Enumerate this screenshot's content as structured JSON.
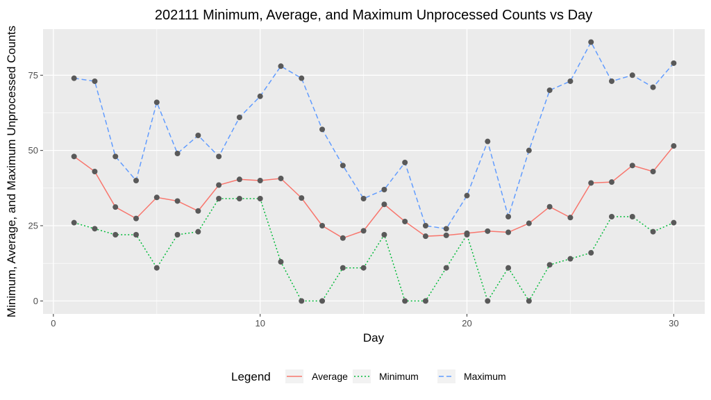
{
  "chart_data": {
    "type": "line",
    "title": "202111 Minimum, Average, and Maximum Unprocessed Counts vs Day",
    "xlabel": "Day",
    "ylabel": "Minimum, Average, and Maximum Unprocessed Counts",
    "xlim": [
      -0.5,
      31.5
    ],
    "ylim": [
      -4.3,
      90.3
    ],
    "x_ticks": [
      0,
      10,
      20,
      30
    ],
    "y_ticks": [
      0,
      25,
      50,
      75
    ],
    "grid": true,
    "legend_position": "bottom",
    "legend_title": "Legend",
    "point_color": "#595959",
    "panel_background": "#ebebeb",
    "x": [
      1,
      2,
      3,
      4,
      5,
      6,
      7,
      8,
      9,
      10,
      11,
      12,
      13,
      14,
      15,
      16,
      17,
      18,
      19,
      20,
      21,
      22,
      23,
      24,
      25,
      26,
      27,
      28,
      29,
      30
    ],
    "series": [
      {
        "name": "Average",
        "color": "#f8766d",
        "dash": "solid",
        "values": [
          48,
          43,
          31.2,
          27.4,
          34.4,
          33.2,
          29.9,
          38.5,
          40.4,
          40,
          40.7,
          34.2,
          25,
          20.9,
          23.3,
          32.1,
          26.4,
          21.5,
          21.8,
          22.5,
          23.2,
          22.8,
          25.8,
          31.3,
          27.7,
          39.2,
          39.5,
          45,
          43,
          51.5
        ]
      },
      {
        "name": "Minimum",
        "color": "#00ba38",
        "dash": "dotted",
        "values": [
          26,
          24,
          22,
          22,
          11,
          22,
          23,
          34,
          34,
          34,
          13,
          0,
          0,
          11,
          11,
          22,
          0,
          0,
          11,
          22,
          0,
          11,
          0,
          12,
          14,
          16,
          28,
          28,
          23,
          26
        ]
      },
      {
        "name": "Maximum",
        "color": "#619cff",
        "dash": "dashed",
        "values": [
          74,
          73,
          48,
          40,
          66,
          49,
          55,
          48,
          61,
          68,
          78,
          74,
          57,
          45,
          34,
          37,
          46,
          25,
          24,
          35,
          53,
          28,
          50,
          70,
          73,
          86,
          73,
          75,
          71,
          79
        ]
      }
    ]
  }
}
